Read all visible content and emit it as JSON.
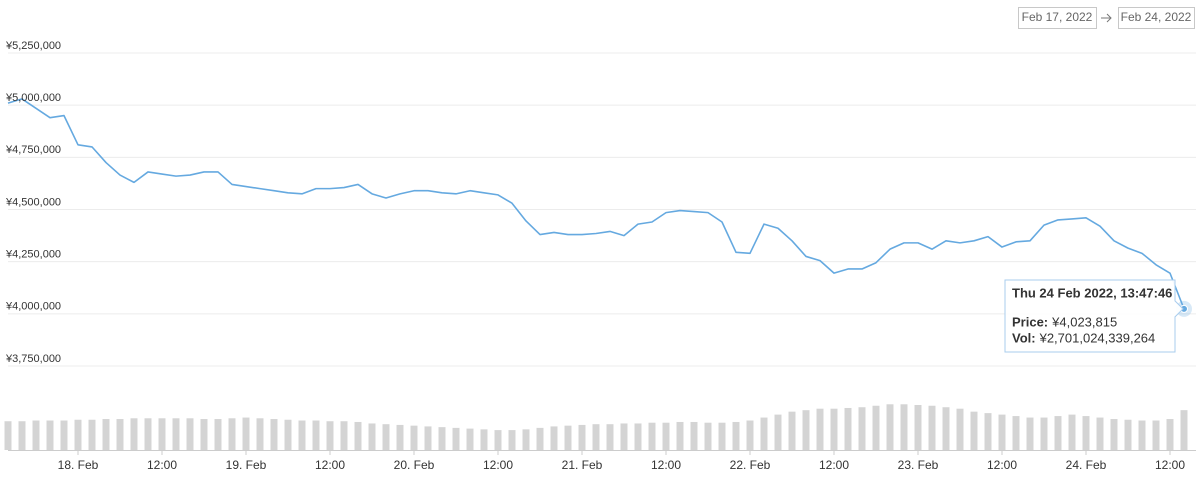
{
  "chart_data": {
    "type": "line",
    "date_range": [
      "Feb 17, 2022",
      "Feb 24, 2022"
    ],
    "categories": [
      null,
      null,
      null,
      null,
      null,
      "18. Feb",
      null,
      null,
      null,
      null,
      null,
      "12:00",
      null,
      null,
      null,
      null,
      null,
      "19. Feb",
      null,
      null,
      null,
      null,
      null,
      "12:00",
      null,
      null,
      null,
      null,
      null,
      "20. Feb",
      null,
      null,
      null,
      null,
      null,
      "12:00",
      null,
      null,
      null,
      null,
      null,
      "21. Feb",
      null,
      null,
      null,
      null,
      null,
      "12:00",
      null,
      null,
      null,
      null,
      null,
      "22. Feb",
      null,
      null,
      null,
      null,
      null,
      "12:00",
      null,
      null,
      null,
      null,
      null,
      "23. Feb",
      null,
      null,
      null,
      null,
      null,
      "12:00",
      null,
      null,
      null,
      null,
      null,
      "24. Feb",
      null,
      null,
      null,
      null,
      null,
      "12:00",
      null
    ],
    "series": [
      {
        "type": "line",
        "color": "#65a9e0",
        "values": [
          5010000,
          5030000,
          4985000,
          4940000,
          4950000,
          4810000,
          4800000,
          4725000,
          4665000,
          4630000,
          4680000,
          4670000,
          4660000,
          4665000,
          4680000,
          4680000,
          4620000,
          4610000,
          4600000,
          4590000,
          4580000,
          4575000,
          4600000,
          4600000,
          4605000,
          4620000,
          4575000,
          4555000,
          4575000,
          4590000,
          4590000,
          4580000,
          4575000,
          4590000,
          4580000,
          4570000,
          4530000,
          4445000,
          4380000,
          4390000,
          4380000,
          4380000,
          4385000,
          4395000,
          4375000,
          4430000,
          4440000,
          4485000,
          4495000,
          4490000,
          4485000,
          4440000,
          4295000,
          4290000,
          4430000,
          4410000,
          4350000,
          4275000,
          4255000,
          4195000,
          4215000,
          4215000,
          4245000,
          4310000,
          4340000,
          4340000,
          4310000,
          4350000,
          4340000,
          4350000,
          4370000,
          4320000,
          4345000,
          4350000,
          4425000,
          4450000,
          4455000,
          4460000,
          4420000,
          4350000,
          4315000,
          4290000,
          4235000,
          4195000,
          4023815
        ]
      },
      {
        "type": "bar",
        "axis": "y2",
        "color": "#d4d4d4",
        "values": [
          1950000000000,
          1950000000000,
          2000000000000,
          2000000000000,
          2000000000000,
          2050000000000,
          2050000000000,
          2100000000000,
          2100000000000,
          2150000000000,
          2150000000000,
          2150000000000,
          2150000000000,
          2150000000000,
          2100000000000,
          2100000000000,
          2150000000000,
          2200000000000,
          2150000000000,
          2100000000000,
          2050000000000,
          2000000000000,
          2000000000000,
          1950000000000,
          1950000000000,
          1900000000000,
          1800000000000,
          1750000000000,
          1700000000000,
          1650000000000,
          1600000000000,
          1550000000000,
          1500000000000,
          1450000000000,
          1400000000000,
          1350000000000,
          1350000000000,
          1400000000000,
          1500000000000,
          1600000000000,
          1650000000000,
          1700000000000,
          1750000000000,
          1750000000000,
          1800000000000,
          1800000000000,
          1850000000000,
          1850000000000,
          1900000000000,
          1900000000000,
          1850000000000,
          1850000000000,
          1900000000000,
          2000000000000,
          2200000000000,
          2400000000000,
          2600000000000,
          2700000000000,
          2800000000000,
          2800000000000,
          2850000000000,
          2900000000000,
          3000000000000,
          3100000000000,
          3100000000000,
          3050000000000,
          3000000000000,
          2900000000000,
          2800000000000,
          2600000000000,
          2500000000000,
          2400000000000,
          2300000000000,
          2200000000000,
          2200000000000,
          2300000000000,
          2400000000000,
          2300000000000,
          2200000000000,
          2100000000000,
          2050000000000,
          2000000000000,
          2000000000000,
          2100000000000,
          2701024339264
        ]
      }
    ],
    "ylim": [
      3750000,
      5250000
    ],
    "yticks": [
      {
        "value": 5250000,
        "label": "¥5,250,000"
      },
      {
        "value": 5000000,
        "label": "¥5,000,000"
      },
      {
        "value": 4750000,
        "label": "¥4,750,000"
      },
      {
        "value": 4500000,
        "label": "¥4,500,000"
      },
      {
        "value": 4250000,
        "label": "¥4,250,000"
      },
      {
        "value": 4000000,
        "label": "¥4,000,000"
      },
      {
        "value": 3750000,
        "label": "¥3,750,000"
      }
    ],
    "y2lim": [
      0,
      4000000000000
    ],
    "grid": true,
    "tooltip": {
      "date": "Thu 24 Feb 2022, 13:47:46",
      "price_label": "Price:",
      "price": "¥4,023,815",
      "vol_label": "Vol:",
      "vol": "¥2,701,024,339,264"
    }
  }
}
